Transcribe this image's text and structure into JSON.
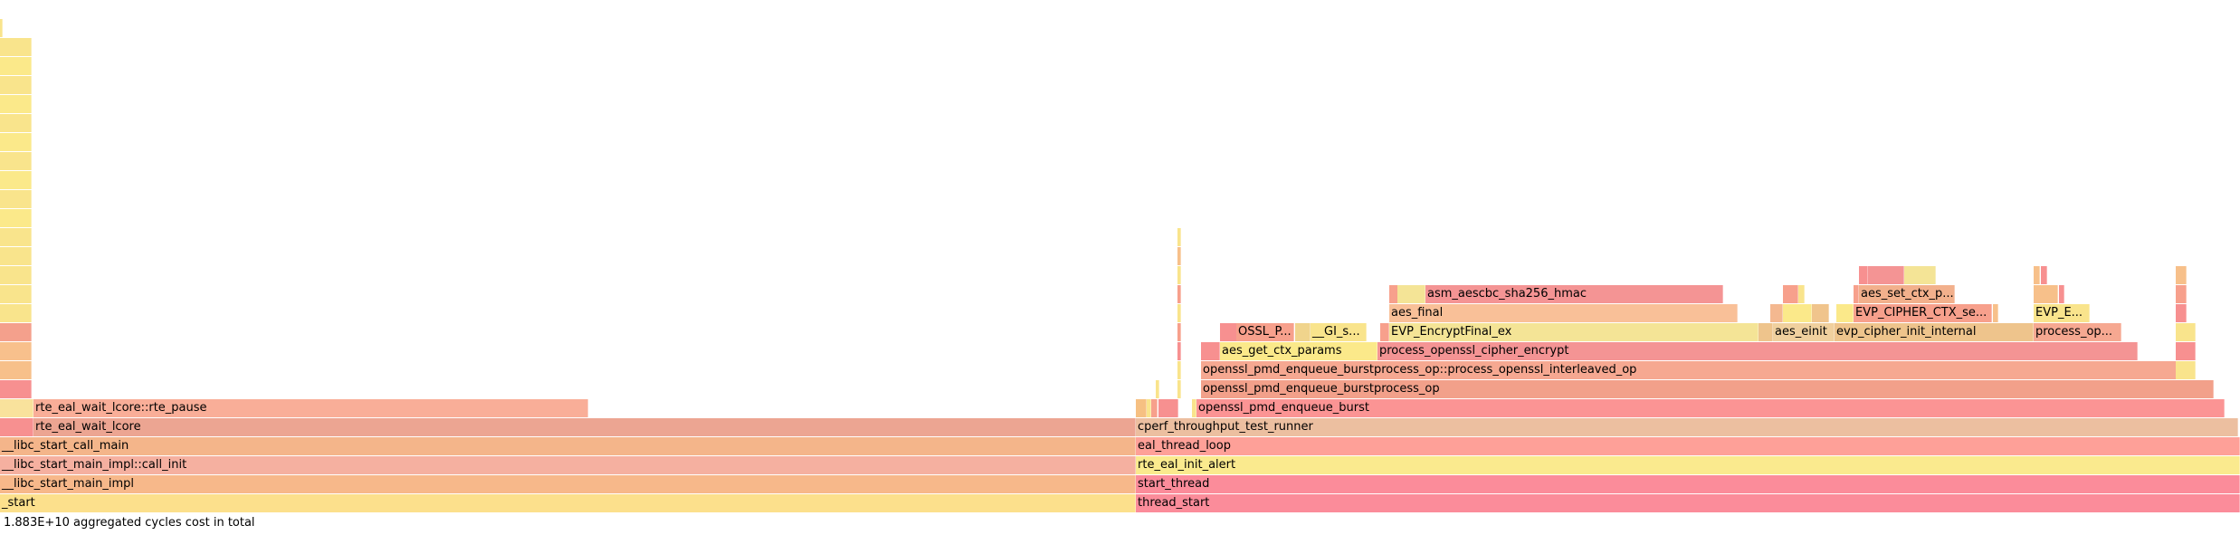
{
  "chart_data": {
    "type": "flamegraph",
    "total_cycles_label": "1.883E+10 aggregated cycles cost in total",
    "colors": [
      "#f2b08c",
      "#f9e48c",
      "#f7a08c",
      "#fcd98a",
      "#f9a5a0",
      "#f0a088",
      "#f4c49a",
      "#f08c8c",
      "#fbe992",
      "#f5b38f"
    ],
    "frames": [
      {
        "label": "_start",
        "depth": 0,
        "start": 0.0,
        "end": 0.5071,
        "color": "#fce08c"
      },
      {
        "label": "thread_start",
        "depth": 0,
        "start": 0.5071,
        "end": 1.0,
        "color": "#fb8c9a"
      },
      {
        "label": "__libc_start_main_impl",
        "depth": 1,
        "start": 0.0,
        "end": 0.5071,
        "color": "#f7b88a"
      },
      {
        "label": "start_thread",
        "depth": 1,
        "start": 0.5071,
        "end": 1.0,
        "color": "#fb8c9a"
      },
      {
        "label": "__libc_start_main_impl::call_init",
        "depth": 2,
        "start": 0.0,
        "end": 0.5071,
        "color": "#f5b0a0"
      },
      {
        "label": "rte_eal_init_alert",
        "depth": 2,
        "start": 0.5071,
        "end": 1.0,
        "color": "#faea8e"
      },
      {
        "label": "__libc_start_call_main",
        "depth": 3,
        "start": 0.0,
        "end": 0.5071,
        "color": "#f4b58a"
      },
      {
        "label": "eal_thread_loop",
        "depth": 3,
        "start": 0.5071,
        "end": 1.0,
        "color": "#fea098"
      },
      {
        "label": "",
        "depth": 4,
        "start": 0.0,
        "end": 0.015,
        "color": "#f79090"
      },
      {
        "label": "rte_eal_wait_lcore",
        "depth": 4,
        "start": 0.015,
        "end": 0.5071,
        "color": "#eca592"
      },
      {
        "label": "cperf_throughput_test_runner",
        "depth": 4,
        "start": 0.5071,
        "end": 0.9992,
        "color": "#ecbfa0"
      },
      {
        "label": "",
        "depth": 5,
        "start": 0.0,
        "end": 0.015,
        "color": "#f9e29c"
      },
      {
        "label": "rte_eal_wait_lcore::rte_pause",
        "depth": 5,
        "start": 0.015,
        "end": 0.2626,
        "color": "#f9ae98"
      },
      {
        "label": "",
        "depth": 5,
        "start": 0.5071,
        "end": 0.512,
        "color": "#f6c082"
      },
      {
        "label": "",
        "depth": 5,
        "start": 0.512,
        "end": 0.514,
        "color": "#f9e48c"
      },
      {
        "label": "",
        "depth": 5,
        "start": 0.514,
        "end": 0.517,
        "color": "#f7a08c"
      },
      {
        "label": "",
        "depth": 5,
        "start": 0.517,
        "end": 0.526,
        "color": "#f79090"
      },
      {
        "label": "",
        "depth": 5,
        "start": 0.526,
        "end": 0.532,
        "color": "#ffffff"
      },
      {
        "label": "",
        "depth": 5,
        "start": 0.532,
        "end": 0.534,
        "color": "#f9e48c"
      },
      {
        "label": "openssl_pmd_enqueue_burst",
        "depth": 5,
        "start": 0.534,
        "end": 0.993,
        "color": "#fb9494"
      },
      {
        "label": "",
        "depth": 6,
        "start": 0.0,
        "end": 0.014,
        "color": "#f79090"
      },
      {
        "label": "",
        "depth": 6,
        "start": 0.516,
        "end": 0.5175,
        "color": "#f9e48c"
      },
      {
        "label": "",
        "depth": 6,
        "start": 0.5255,
        "end": 0.527,
        "color": "#f9e48c"
      },
      {
        "label": "openssl_pmd_enqueue_burstprocess_op",
        "depth": 6,
        "start": 0.536,
        "end": 0.988,
        "color": "#f2a08a"
      },
      {
        "label": "",
        "depth": 7,
        "start": 0.0,
        "end": 0.014,
        "color": "#f7c08a"
      },
      {
        "label": "",
        "depth": 7,
        "start": 0.5255,
        "end": 0.527,
        "color": "#f9e48c"
      },
      {
        "label": "openssl_pmd_enqueue_burstprocess_op::process_openssl_interleaved_op",
        "depth": 7,
        "start": 0.536,
        "end": 0.9715,
        "color": "#f6a891"
      },
      {
        "label": "",
        "depth": 7,
        "start": 0.9715,
        "end": 0.9805,
        "color": "#f9e48c"
      },
      {
        "label": "",
        "depth": 8,
        "start": 0.0,
        "end": 0.014,
        "color": "#f8c08c"
      },
      {
        "label": "",
        "depth": 8,
        "start": 0.5255,
        "end": 0.527,
        "color": "#f79090"
      },
      {
        "label": "",
        "depth": 8,
        "start": 0.536,
        "end": 0.5445,
        "color": "#f79090"
      },
      {
        "label": "aes_get_ctx_params",
        "depth": 8,
        "start": 0.5445,
        "end": 0.615,
        "color": "#fbe98a"
      },
      {
        "label": "process_openssl_cipher_encrypt",
        "depth": 8,
        "start": 0.615,
        "end": 0.9545,
        "color": "#f49494"
      },
      {
        "label": "",
        "depth": 8,
        "start": 0.9715,
        "end": 0.9805,
        "color": "#f79090"
      },
      {
        "label": "",
        "depth": 9,
        "start": 0.0,
        "end": 0.014,
        "color": "#f4a08c"
      },
      {
        "label": "",
        "depth": 9,
        "start": 0.5255,
        "end": 0.527,
        "color": "#f7a08c"
      },
      {
        "label": "",
        "depth": 9,
        "start": 0.5445,
        "end": 0.552,
        "color": "#f79090"
      },
      {
        "label": "OSSL_P...",
        "depth": 9,
        "start": 0.552,
        "end": 0.578,
        "color": "#f7a08c"
      },
      {
        "label": "",
        "depth": 9,
        "start": 0.578,
        "end": 0.585,
        "color": "#f0d48c"
      },
      {
        "label": "__GI_s...",
        "depth": 9,
        "start": 0.585,
        "end": 0.61,
        "color": "#f9e48c"
      },
      {
        "label": "",
        "depth": 9,
        "start": 0.616,
        "end": 0.62,
        "color": "#f7a08c"
      },
      {
        "label": "EVP_EncryptFinal_ex",
        "depth": 9,
        "start": 0.62,
        "end": 0.785,
        "color": "#f4e496"
      },
      {
        "label": "",
        "depth": 9,
        "start": 0.785,
        "end": 0.7915,
        "color": "#eec48c"
      },
      {
        "label": "aes_einit",
        "depth": 9,
        "start": 0.7915,
        "end": 0.819,
        "color": "#f0d09e"
      },
      {
        "label": "evp_cipher_init_internal",
        "depth": 9,
        "start": 0.819,
        "end": 0.908,
        "color": "#eec48c"
      },
      {
        "label": "process_op...",
        "depth": 9,
        "start": 0.908,
        "end": 0.947,
        "color": "#f6a891"
      },
      {
        "label": "",
        "depth": 9,
        "start": 0.9715,
        "end": 0.9805,
        "color": "#f9e48c"
      },
      {
        "label": "",
        "depth": 10,
        "start": 0.0,
        "end": 0.014,
        "color": "#f9e48c"
      },
      {
        "label": "",
        "depth": 10,
        "start": 0.5255,
        "end": 0.527,
        "color": "#f9e48c"
      },
      {
        "label": "aes_final",
        "depth": 10,
        "start": 0.62,
        "end": 0.7755,
        "color": "#f9c098"
      },
      {
        "label": "",
        "depth": 10,
        "start": 0.7905,
        "end": 0.796,
        "color": "#f4b890"
      },
      {
        "label": "",
        "depth": 10,
        "start": 0.796,
        "end": 0.809,
        "color": "#fbe98a"
      },
      {
        "label": "",
        "depth": 10,
        "start": 0.809,
        "end": 0.8165,
        "color": "#f0c48c"
      },
      {
        "label": "",
        "depth": 10,
        "start": 0.82,
        "end": 0.8275,
        "color": "#fbe98a"
      },
      {
        "label": "EVP_CIPHER_CTX_se...",
        "depth": 10,
        "start": 0.8275,
        "end": 0.8895,
        "color": "#f7a08c"
      },
      {
        "label": "",
        "depth": 10,
        "start": 0.8895,
        "end": 0.892,
        "color": "#f7c08a"
      },
      {
        "label": "EVP_E...",
        "depth": 10,
        "start": 0.908,
        "end": 0.933,
        "color": "#f9e48c"
      },
      {
        "label": "",
        "depth": 10,
        "start": 0.9715,
        "end": 0.9765,
        "color": "#f79090"
      },
      {
        "label": "",
        "depth": 11,
        "start": 0.0,
        "end": 0.014,
        "color": "#f9e48c"
      },
      {
        "label": "",
        "depth": 11,
        "start": 0.5255,
        "end": 0.527,
        "color": "#f7a08c"
      },
      {
        "label": "",
        "depth": 11,
        "start": 0.62,
        "end": 0.624,
        "color": "#f7a08c"
      },
      {
        "label": "",
        "depth": 11,
        "start": 0.624,
        "end": 0.6365,
        "color": "#f4e496"
      },
      {
        "label": "asm_aescbc_sha256_hmac",
        "depth": 11,
        "start": 0.6365,
        "end": 0.7695,
        "color": "#f49494"
      },
      {
        "label": "",
        "depth": 11,
        "start": 0.796,
        "end": 0.803,
        "color": "#f7a08c"
      },
      {
        "label": "",
        "depth": 11,
        "start": 0.803,
        "end": 0.806,
        "color": "#f9e48c"
      },
      {
        "label": "",
        "depth": 11,
        "start": 0.8275,
        "end": 0.83,
        "color": "#f7a08c"
      },
      {
        "label": "aes_set_ctx_p...",
        "depth": 11,
        "start": 0.83,
        "end": 0.873,
        "color": "#f2b08c"
      },
      {
        "label": "",
        "depth": 11,
        "start": 0.908,
        "end": 0.919,
        "color": "#f7c08a"
      },
      {
        "label": "",
        "depth": 11,
        "start": 0.919,
        "end": 0.9215,
        "color": "#f79090"
      },
      {
        "label": "",
        "depth": 11,
        "start": 0.9715,
        "end": 0.9765,
        "color": "#f7a08c"
      },
      {
        "label": "",
        "depth": 12,
        "start": 0.0,
        "end": 0.014,
        "color": "#f9e48c"
      },
      {
        "label": "",
        "depth": 12,
        "start": 0.5255,
        "end": 0.527,
        "color": "#f9e48c"
      },
      {
        "label": "",
        "depth": 12,
        "start": 0.83,
        "end": 0.834,
        "color": "#f79090"
      },
      {
        "label": "",
        "depth": 12,
        "start": 0.834,
        "end": 0.85,
        "color": "#f49494"
      },
      {
        "label": "",
        "depth": 12,
        "start": 0.85,
        "end": 0.864,
        "color": "#f4e496"
      },
      {
        "label": "",
        "depth": 12,
        "start": 0.908,
        "end": 0.911,
        "color": "#f7c08a"
      },
      {
        "label": "",
        "depth": 12,
        "start": 0.911,
        "end": 0.914,
        "color": "#f79090"
      },
      {
        "label": "",
        "depth": 12,
        "start": 0.9715,
        "end": 0.9765,
        "color": "#f7c08a"
      },
      {
        "label": "",
        "depth": 13,
        "start": 0.0,
        "end": 0.014,
        "color": "#f9e48c"
      },
      {
        "label": "",
        "depth": 13,
        "start": 0.5255,
        "end": 0.527,
        "color": "#f7c08a"
      },
      {
        "label": "",
        "depth": 14,
        "start": 0.0,
        "end": 0.014,
        "color": "#f9e48c"
      },
      {
        "label": "",
        "depth": 14,
        "start": 0.5255,
        "end": 0.527,
        "color": "#f9e48c"
      },
      {
        "label": "",
        "depth": 15,
        "start": 0.0,
        "end": 0.014,
        "color": "#fbe98a"
      },
      {
        "label": "",
        "depth": 16,
        "start": 0.0,
        "end": 0.014,
        "color": "#f9e48c"
      },
      {
        "label": "",
        "depth": 17,
        "start": 0.0,
        "end": 0.014,
        "color": "#fbe98a"
      },
      {
        "label": "",
        "depth": 18,
        "start": 0.0,
        "end": 0.014,
        "color": "#f9e48c"
      },
      {
        "label": "",
        "depth": 19,
        "start": 0.0,
        "end": 0.014,
        "color": "#fbe98a"
      },
      {
        "label": "",
        "depth": 20,
        "start": 0.0,
        "end": 0.014,
        "color": "#f9e48c"
      },
      {
        "label": "",
        "depth": 21,
        "start": 0.0,
        "end": 0.014,
        "color": "#fbe98a"
      },
      {
        "label": "",
        "depth": 22,
        "start": 0.0,
        "end": 0.014,
        "color": "#f9e48c"
      },
      {
        "label": "",
        "depth": 23,
        "start": 0.0,
        "end": 0.014,
        "color": "#fbe98a"
      },
      {
        "label": "",
        "depth": 24,
        "start": 0.0,
        "end": 0.014,
        "color": "#f9e48c"
      },
      {
        "label": "",
        "depth": 25,
        "start": 0.0,
        "end": 0.0011,
        "color": "#f9e48c"
      }
    ]
  }
}
